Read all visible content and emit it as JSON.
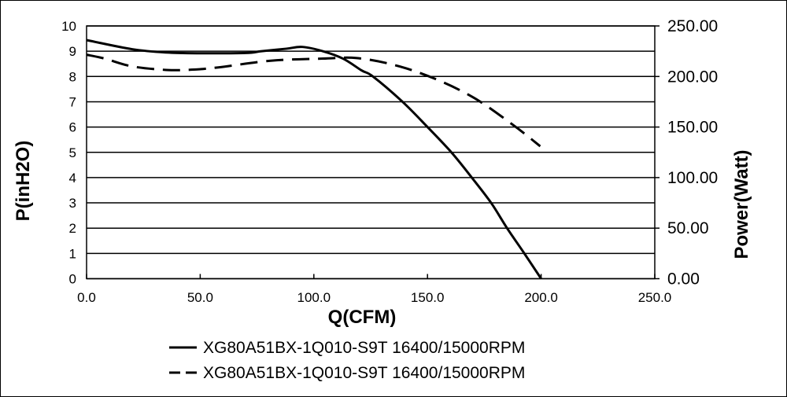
{
  "chart_data": {
    "type": "line",
    "xlabel": "Q(CFM)",
    "ylabel": "P(inH2O)",
    "y2label": "Power(Watt)",
    "xlim": [
      0,
      250
    ],
    "ylim": [
      0,
      10
    ],
    "y2lim": [
      0,
      250
    ],
    "grid": true,
    "legend_position": "bottom",
    "xticks": [
      "0.0",
      "50.0",
      "100.0",
      "150.0",
      "200.0",
      "250.0"
    ],
    "yticks": [
      "0",
      "1",
      "2",
      "3",
      "4",
      "5",
      "6",
      "7",
      "8",
      "9",
      "10"
    ],
    "y2ticks": [
      "0.00",
      "50.00",
      "100.00",
      "150.00",
      "200.00",
      "250.00"
    ],
    "series": [
      {
        "name": "XG80A51BX-1Q010-S9T 16400/15000RPM",
        "axis": "left",
        "style": "solid",
        "x": [
          0,
          20,
          35,
          50,
          70,
          77,
          88,
          95,
          104,
          113,
          121,
          126,
          139,
          150,
          160.5,
          169.5,
          178,
          185,
          192.6,
          200
        ],
        "y": [
          9.44,
          9.08,
          8.95,
          8.92,
          8.93,
          9.0,
          9.1,
          9.17,
          9.0,
          8.7,
          8.24,
          8.0,
          7.0,
          6.0,
          5.0,
          4.0,
          3.0,
          2.0,
          1.0,
          0.0
        ]
      },
      {
        "name": "XG80A51BX-1Q010-S9T 16400/15000RPM",
        "axis": "right",
        "style": "dashed",
        "x": [
          0,
          8,
          20,
          35,
          46,
          58,
          81,
          104,
          119,
          136,
          153,
          170.6,
          188,
          199.6
        ],
        "y": [
          221.5,
          217.7,
          210,
          206.5,
          206.7,
          209,
          215.6,
          217.7,
          218.2,
          211,
          198,
          178.7,
          151.5,
          131
        ]
      }
    ]
  }
}
